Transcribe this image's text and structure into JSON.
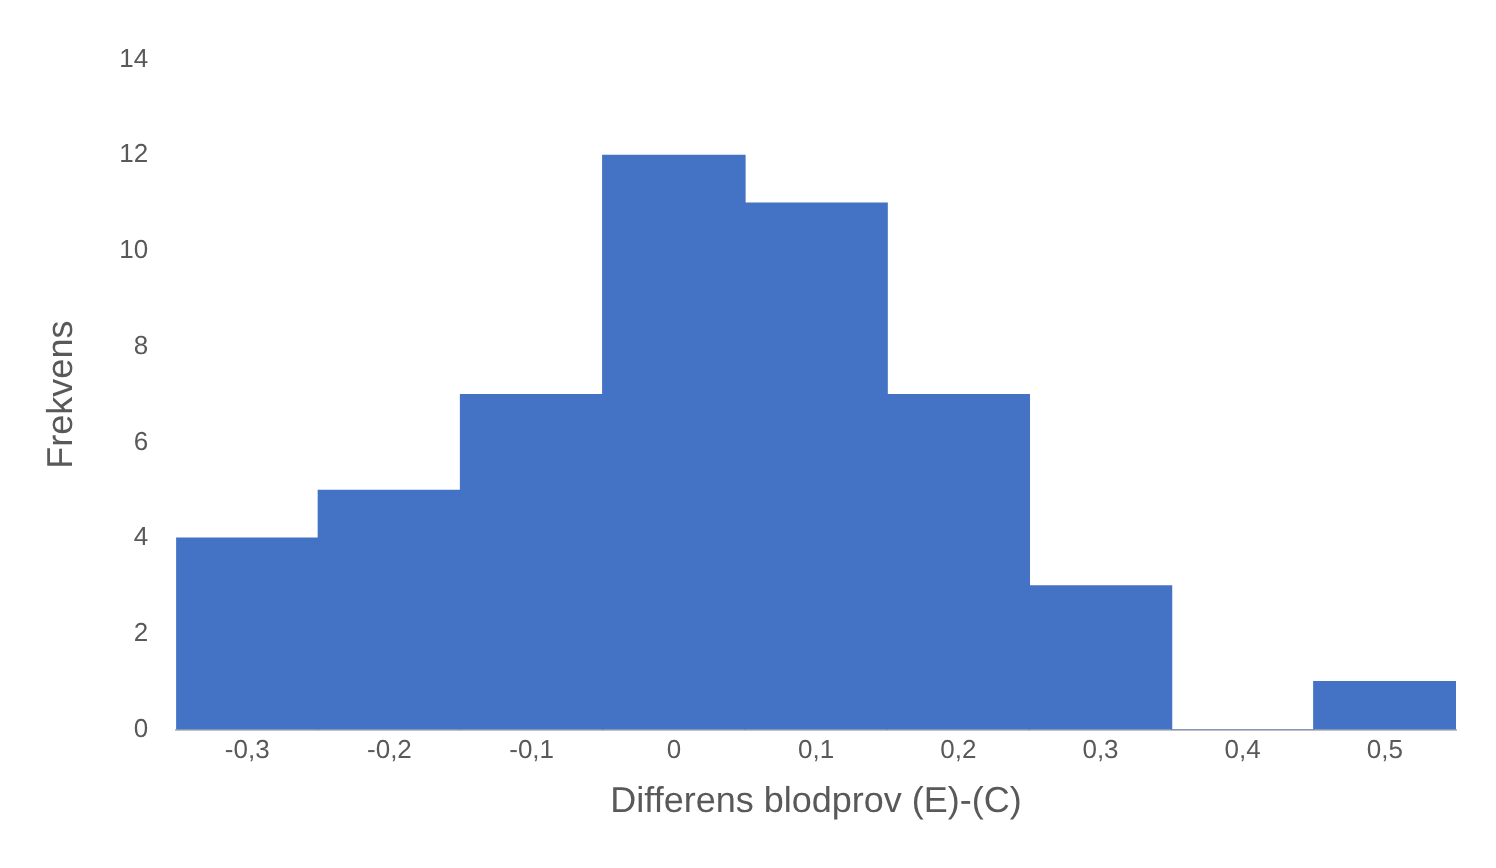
{
  "chart_data": {
    "type": "histogram",
    "xlabel": "Differens blodprov (E)-(C)",
    "ylabel": "Frekvens",
    "bins": [
      -0.35,
      -0.25,
      -0.15,
      -0.05,
      0.05,
      0.15,
      0.25,
      0.35,
      0.45,
      0.55
    ],
    "values": [
      4,
      5,
      7,
      12,
      11,
      7,
      3,
      0,
      1
    ],
    "color": "#4472c4",
    "xlim": [
      -0.35,
      0.55
    ],
    "xticks": [
      {
        "value": -0.3,
        "label": "-0,3"
      },
      {
        "value": -0.2,
        "label": "-0,2"
      },
      {
        "value": -0.1,
        "label": "-0,1"
      },
      0,
      {
        "value": 0.1,
        "label": "0,1"
      },
      {
        "value": 0.2,
        "label": "0,2"
      },
      {
        "value": 0.3,
        "label": "0,3"
      },
      {
        "value": 0.4,
        "label": "0,4"
      },
      {
        "value": 0.5,
        "label": "0,5"
      }
    ],
    "ylim": [
      0,
      14
    ],
    "yticks": [
      0,
      2,
      4,
      6,
      8,
      10,
      12,
      14
    ],
    "grid": false,
    "legend": false
  }
}
